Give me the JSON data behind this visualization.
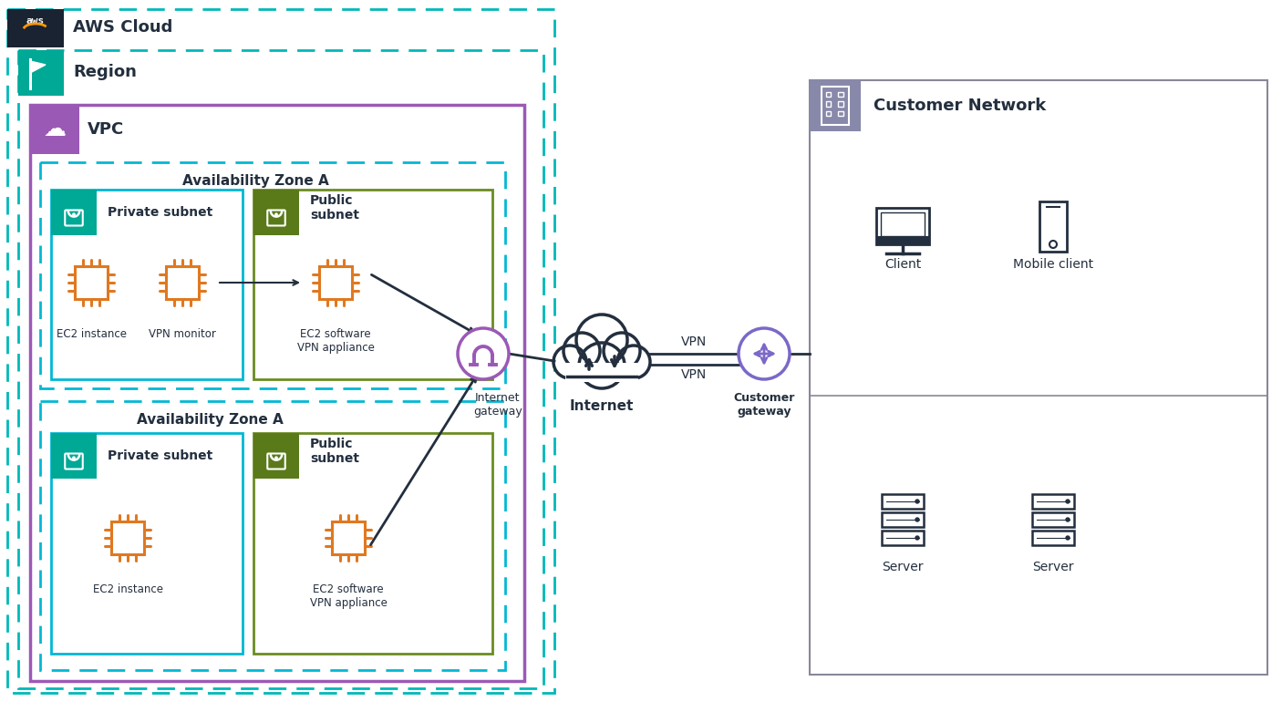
{
  "bg_color": "#ffffff",
  "aws_header_color": "#1a2332",
  "aws_header_text": "AWS Cloud",
  "region_border_color": "#00b8b8",
  "region_label": "Region",
  "region_icon_color": "#00a896",
  "vpc_border_color": "#9b59b6",
  "vpc_label": "VPC",
  "vpc_icon_color": "#9b59b6",
  "az_border_color": "#00b8d4",
  "az_label": "Availability Zone A",
  "private_subnet_border_color": "#00b8d4",
  "private_subnet_bg": "#ffffff",
  "private_subnet_label": "Private subnet",
  "private_subnet_icon_color": "#00a896",
  "public_subnet_border_color": "#6b8c21",
  "public_subnet_bg": "#ffffff",
  "public_subnet_label": "Public\nsubnet",
  "public_subnet_icon_color": "#5a7a1a",
  "ec2_color": "#e07820",
  "internet_gateway_color": "#9b59b6",
  "internet_color": "#232f3e",
  "customer_gateway_color": "#7b68c8",
  "customer_network_bg": "#ffffff",
  "customer_network_border": "#888899",
  "customer_network_header_color": "#8888aa",
  "customer_network_label": "Customer Network",
  "text_color": "#232f3e",
  "vpn_label": "VPN",
  "internet_label": "Internet",
  "internet_gateway_label": "Internet\ngateway",
  "customer_gateway_label": "Customer\ngateway",
  "ec2_instance_label": "EC2 instance",
  "vpn_monitor_label": "VPN monitor",
  "ec2_vpn_label": "EC2 software\nVPN appliance",
  "client_label": "Client",
  "mobile_client_label": "Mobile client",
  "server_label": "Server",
  "line_color": "#232f3e"
}
